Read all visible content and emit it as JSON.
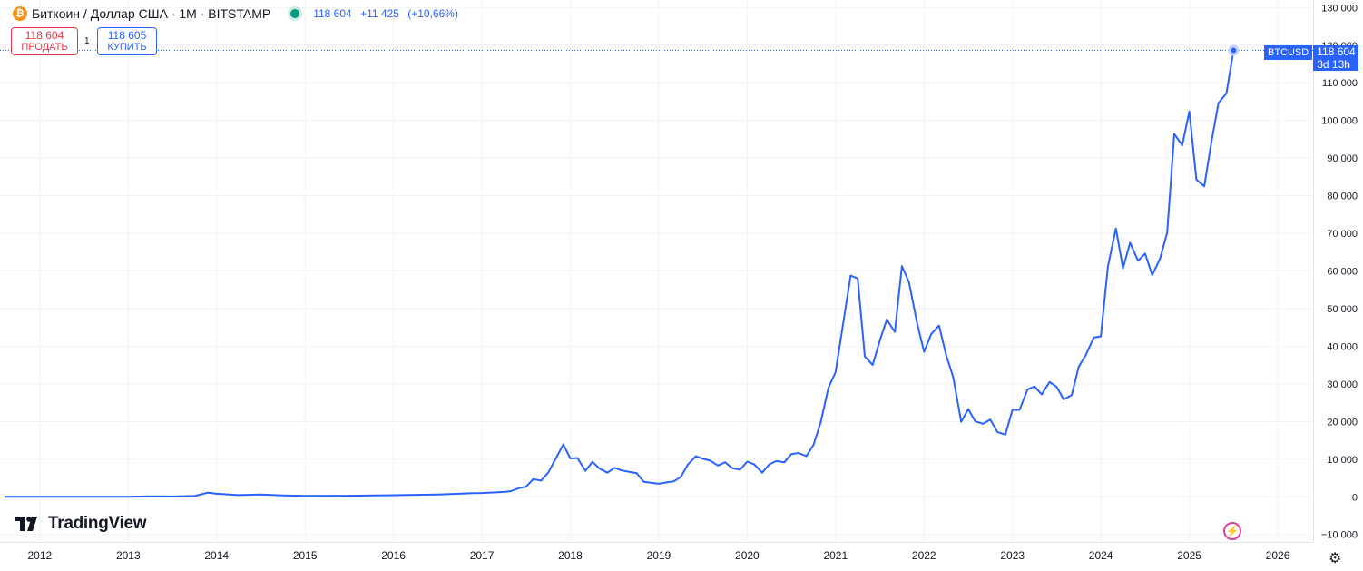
{
  "legend": {
    "coin_glyph": "₿",
    "title": "Биткоин / Доллар США · 1M · BITSTAMP",
    "last": "118 604",
    "change": "+11 425",
    "change_pct": "(+10,66%)"
  },
  "trade": {
    "sell_price": "118 604",
    "sell_label": "ПРОДАТЬ",
    "spread": "1",
    "buy_price": "118 605",
    "buy_label": "КУПИТЬ"
  },
  "price_tag": {
    "symbol": "BTCUSD",
    "value": "118 604",
    "countdown": "3d 13h"
  },
  "logo": "TradingView",
  "colors": {
    "line": "#2962ff",
    "grid": "#f0f3fa",
    "axis_text": "#131722",
    "sell": "#f23645",
    "buy": "#2962ff",
    "live": "#089981"
  },
  "chart_data": {
    "type": "line",
    "title": "Биткоин / Доллар США · 1M · BITSTAMP",
    "ylim": [
      -12000,
      132000
    ],
    "xlim": [
      2011.55,
      2026.4
    ],
    "y_ticks": [
      -10000,
      0,
      10000,
      20000,
      30000,
      40000,
      50000,
      60000,
      70000,
      80000,
      90000,
      100000,
      110000,
      120000,
      130000
    ],
    "y_tick_labels": [
      "−10 000",
      "0",
      "10 000",
      "20 000",
      "30 000",
      "40 000",
      "50 000",
      "60 000",
      "70 000",
      "80 000",
      "90 000",
      "100 000",
      "110 000",
      "120 000",
      "130 000"
    ],
    "x_ticks": [
      2012,
      2013,
      2014,
      2015,
      2016,
      2017,
      2018,
      2019,
      2020,
      2021,
      2022,
      2023,
      2024,
      2025,
      2026
    ],
    "x_tick_labels": [
      "2012",
      "2013",
      "2014",
      "2015",
      "2016",
      "2017",
      "2018",
      "2019",
      "2020",
      "2021",
      "2022",
      "2023",
      "2024",
      "2025",
      "2026"
    ],
    "grid": true,
    "last_value": 118604,
    "series": [
      {
        "x": [
          2011.6,
          2012.0,
          2012.5,
          2013.0,
          2013.25,
          2013.5,
          2013.75,
          2013.9,
          2014.0,
          2014.25,
          2014.5,
          2014.75,
          2015.0,
          2015.5,
          2016.0,
          2016.5,
          2016.9,
          2017.0,
          2017.25,
          2017.33,
          2017.42,
          2017.5,
          2017.58,
          2017.67,
          2017.75,
          2017.83,
          2017.92,
          2018.0,
          2018.08,
          2018.17,
          2018.25,
          2018.33,
          2018.42,
          2018.5,
          2018.58,
          2018.67,
          2018.75,
          2018.83,
          2018.92,
          2019.0,
          2019.08,
          2019.17,
          2019.25,
          2019.33,
          2019.42,
          2019.5,
          2019.58,
          2019.67,
          2019.75,
          2019.83,
          2019.92,
          2020.0,
          2020.08,
          2020.17,
          2020.25,
          2020.33,
          2020.42,
          2020.5,
          2020.58,
          2020.67,
          2020.75,
          2020.83,
          2020.92,
          2021.0,
          2021.08,
          2021.17,
          2021.25,
          2021.33,
          2021.42,
          2021.5,
          2021.58,
          2021.67,
          2021.75,
          2021.83,
          2021.92,
          2022.0,
          2022.08,
          2022.17,
          2022.25,
          2022.33,
          2022.42,
          2022.5,
          2022.58,
          2022.67,
          2022.75,
          2022.83,
          2022.92,
          2023.0,
          2023.08,
          2023.17,
          2023.25,
          2023.33,
          2023.42,
          2023.5,
          2023.58,
          2023.67,
          2023.75,
          2023.83,
          2023.92,
          2024.0,
          2024.08,
          2024.17,
          2024.25,
          2024.33,
          2024.42,
          2024.5,
          2024.58,
          2024.67,
          2024.75,
          2024.83,
          2024.92,
          2025.0,
          2025.08,
          2025.17,
          2025.25,
          2025.33,
          2025.42,
          2025.5
        ],
        "values": [
          5,
          5,
          7,
          20,
          100,
          90,
          200,
          1100,
          800,
          450,
          600,
          380,
          220,
          280,
          430,
          620,
          960,
          1000,
          1300,
          1500,
          2300,
          2700,
          4700,
          4300,
          6400,
          9900,
          13900,
          10200,
          10300,
          6900,
          9300,
          7500,
          6400,
          7700,
          7000,
          6600,
          6300,
          4000,
          3700,
          3450,
          3800,
          4100,
          5300,
          8600,
          10800,
          10100,
          9600,
          8300,
          9200,
          7600,
          7200,
          9350,
          8600,
          6400,
          8600,
          9500,
          9150,
          11350,
          11650,
          10800,
          13800,
          19700,
          29000,
          33100,
          45200,
          58800,
          58000,
          37300,
          35000,
          41500,
          47100,
          43800,
          61300,
          57000,
          46300,
          38500,
          43200,
          45500,
          37700,
          31800,
          19900,
          23300,
          20000,
          19400,
          20500,
          17200,
          16500,
          23100,
          23100,
          28500,
          29300,
          27200,
          30500,
          29200,
          25900,
          27000,
          34600,
          37700,
          42300,
          42600,
          61200,
          71300,
          60700,
          67500,
          62700,
          64600,
          58900,
          63300,
          70200,
          96400,
          93400,
          102400,
          84300,
          82500,
          94200,
          104600,
          107200,
          118604
        ]
      }
    ]
  }
}
